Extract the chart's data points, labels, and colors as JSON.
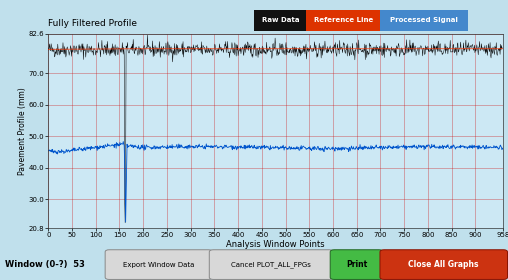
{
  "title": "Fully Filtered Profile",
  "xlabel": "Analysis Window Points",
  "ylabel": "Pavement Profile (mm)",
  "xlim": [
    0,
    958
  ],
  "ylim": [
    20.8,
    82.6
  ],
  "yticks": [
    20.8,
    30.0,
    40.0,
    50.0,
    60.0,
    70.0,
    82.6
  ],
  "xticks": [
    0,
    50,
    100,
    150,
    200,
    250,
    300,
    350,
    400,
    450,
    500,
    550,
    600,
    650,
    700,
    750,
    800,
    850,
    900,
    958
  ],
  "bg_color": "#c0e0ec",
  "plot_bg_color": "#cce8f4",
  "raw_data_color": "#000000",
  "ref_line_color": "#ff3300",
  "processed_signal_color": "#0055cc",
  "legend_raw": "Raw Data",
  "legend_ref": "Reference Line",
  "legend_proc": "Processed Signal",
  "grid_color": "#cc1111",
  "raw_mean": 77.5,
  "raw_noise": 1.2,
  "raw_dip_x": 162,
  "raw_dip_depth": 55,
  "ref_mean": 77.8,
  "proc_mean": 46.5,
  "proc_noise": 0.35,
  "proc_dip_x": 163,
  "proc_dip_depth": 24,
  "n_points": 958,
  "window_label": "Window (0-?)  53",
  "btn1_label": "Export Window Data",
  "btn2_label": "Cancel PLOT_ALL_FPGs",
  "btn3_label": "Print",
  "btn4_label": "Close All Graphs",
  "btn3_color": "#44bb44",
  "btn4_color": "#cc3311",
  "legend_raw_bg": "#111111",
  "legend_ref_bg": "#dd3300",
  "legend_proc_bg": "#4488cc"
}
